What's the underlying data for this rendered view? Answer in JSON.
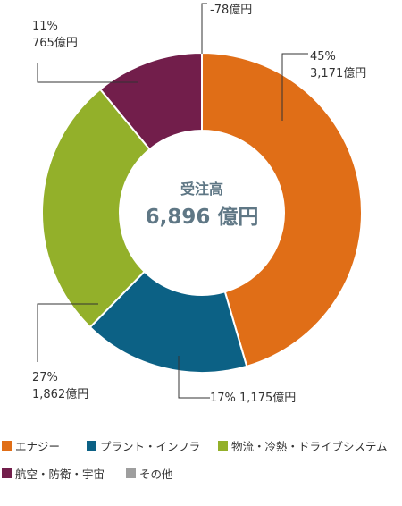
{
  "chart_data": {
    "type": "pie",
    "donut": true,
    "center_title": "受注高",
    "center_value": "6,896 億円",
    "series": [
      {
        "name": "エナジー",
        "value": 3171,
        "percent": "45%",
        "amount": "3,171億円",
        "color": "#e06e17"
      },
      {
        "name": "プラント・インフラ",
        "value": 1175,
        "percent": "17%",
        "amount": "1,175億円",
        "color": "#0c6185"
      },
      {
        "name": "物流・冷熱・ドライブシステム",
        "value": 1862,
        "percent": "27%",
        "amount": "1,862億円",
        "color": "#93b02a"
      },
      {
        "name": "航空・防衛・宇宙",
        "value": 765,
        "percent": "11%",
        "amount": "765億円",
        "color": "#721e4b"
      },
      {
        "name": "その他",
        "value": -78,
        "percent": "",
        "amount": "-78億円",
        "color": "#9e9e9e"
      }
    ],
    "callouts": [
      {
        "lines": [
          "45%",
          "3,171億円"
        ]
      },
      {
        "lines": [
          "17%  1,175億円"
        ]
      },
      {
        "lines": [
          "27%",
          "1,862億円"
        ]
      },
      {
        "lines": [
          "11%",
          "765億円"
        ]
      },
      {
        "lines": [
          "-78億円"
        ]
      }
    ],
    "legend_position": "bottom"
  }
}
